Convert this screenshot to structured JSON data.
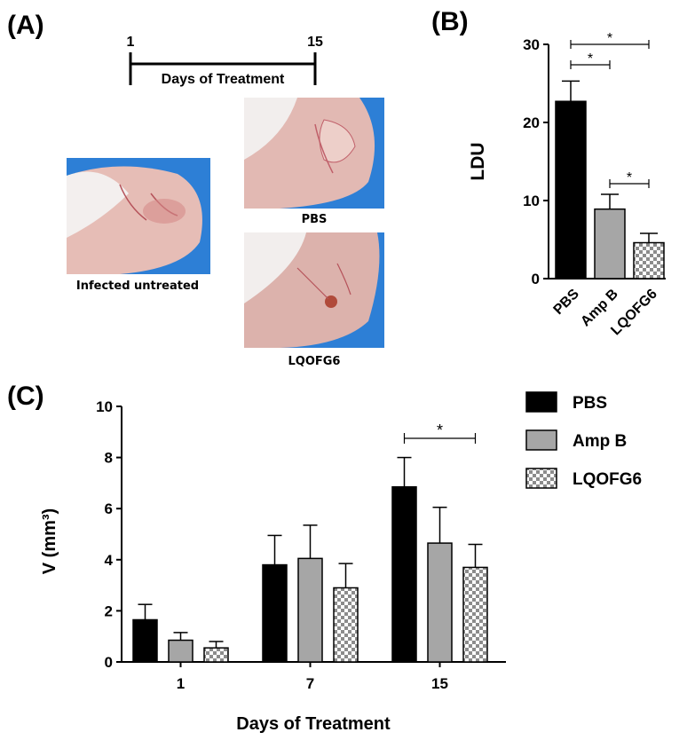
{
  "panels": {
    "a": {
      "label": "(A)",
      "timeline": {
        "start": "1",
        "end": "15",
        "label": "Days of Treatment"
      },
      "photos": [
        {
          "caption": "Infected untreated"
        },
        {
          "caption": "PBS"
        },
        {
          "caption": "LQOFG6"
        }
      ]
    },
    "b": {
      "label": "(B)"
    },
    "c": {
      "label": "(C)"
    }
  },
  "colors": {
    "pbs": "#000000",
    "ampb": "#a6a6a6",
    "lqofg6": "checker",
    "glove": "#2d7fd6",
    "skin": "#e8b4ae"
  },
  "chart_data": [
    {
      "type": "bar",
      "panel": "B",
      "categories": [
        "PBS",
        "Amp B",
        "LQOFG6"
      ],
      "values": [
        22.7,
        8.9,
        4.6
      ],
      "errors": [
        2.6,
        1.9,
        1.2
      ],
      "ylabel": "LDU",
      "xlabel": "",
      "ylim": [
        0,
        30
      ],
      "yticks": [
        0,
        10,
        20,
        30
      ],
      "grid": false,
      "significance": [
        {
          "from": 0,
          "to": 2,
          "label": "*"
        },
        {
          "from": 0,
          "to": 1,
          "label": "*"
        },
        {
          "from": 1,
          "to": 2,
          "label": "*"
        }
      ]
    },
    {
      "type": "bar",
      "panel": "C",
      "categories": [
        "1",
        "7",
        "15"
      ],
      "series": [
        {
          "name": "PBS",
          "values": [
            1.65,
            3.8,
            6.85
          ],
          "errors": [
            0.6,
            1.15,
            1.15
          ]
        },
        {
          "name": "Amp B",
          "values": [
            0.85,
            4.05,
            4.65
          ],
          "errors": [
            0.3,
            1.3,
            1.4
          ]
        },
        {
          "name": "LQOFG6",
          "values": [
            0.55,
            2.9,
            3.7
          ],
          "errors": [
            0.25,
            0.95,
            0.9
          ]
        }
      ],
      "xlabel": "Days of Treatment",
      "ylabel": "V (mm³)",
      "ylim": [
        0,
        10
      ],
      "yticks": [
        0,
        2,
        4,
        6,
        8,
        10
      ],
      "grid": false,
      "legend": "right",
      "significance": [
        {
          "category": 2,
          "from": 0,
          "to": 2,
          "label": "*"
        }
      ]
    }
  ]
}
